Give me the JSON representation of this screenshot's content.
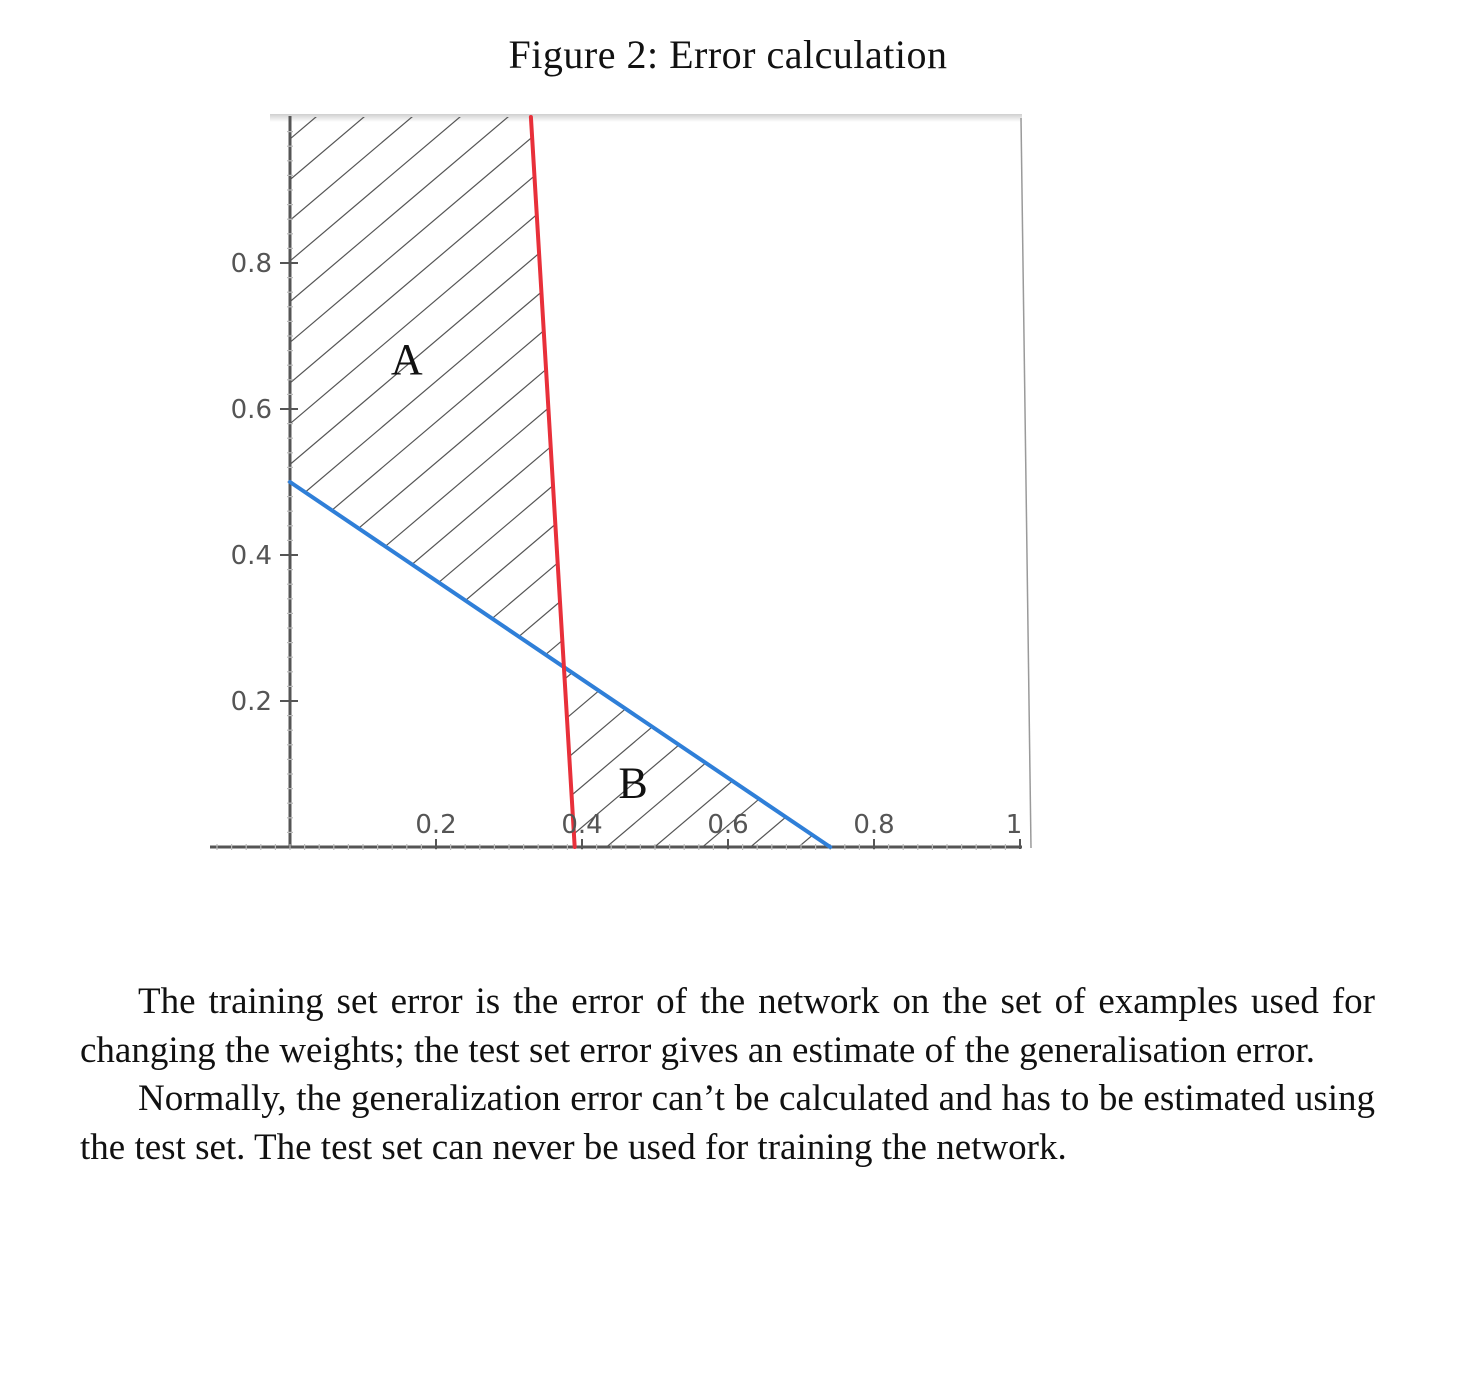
{
  "figure": {
    "caption": "Figure 2: Error calculation",
    "colors": {
      "red_line": "#e8303a",
      "blue_line": "#2f7fd8",
      "axis": "#555555",
      "hatch": "#555555"
    }
  },
  "chart_data": {
    "type": "line",
    "xlim": [
      -0.1,
      1.0
    ],
    "ylim": [
      0,
      1.0
    ],
    "x_ticks": [
      {
        "value": 0.2,
        "label": "0.2"
      },
      {
        "value": 0.4,
        "label": "0.4"
      },
      {
        "value": 0.6,
        "label": "0.6"
      },
      {
        "value": 0.8,
        "label": "0.8"
      },
      {
        "value": 1.0,
        "label": "1"
      }
    ],
    "y_ticks": [
      {
        "value": 0.2,
        "label": "0.2"
      },
      {
        "value": 0.4,
        "label": "0.4"
      },
      {
        "value": 0.6,
        "label": "0.6"
      },
      {
        "value": 0.8,
        "label": "0.8"
      }
    ],
    "series": [
      {
        "color": "#e8303a",
        "points": [
          [
            0.33,
            1.0
          ],
          [
            0.39,
            0.0
          ]
        ]
      },
      {
        "color": "#2f7fd8",
        "points": [
          [
            0.0,
            0.5
          ],
          [
            0.74,
            0.0
          ]
        ]
      }
    ],
    "regions": [
      {
        "label": "A",
        "hatched": true,
        "label_at": [
          0.16,
          0.67
        ]
      },
      {
        "label": "B",
        "hatched": true,
        "label_at": [
          0.47,
          0.09
        ]
      }
    ],
    "grid": false
  },
  "text": {
    "paragraphs": [
      "The training set error is the error of the network on the set of examples used for changing the weights; the test set error gives an estimate of the generalisation error.",
      "Normally, the generalization error can’t be calculated and has to be es­timated using the test set. The test set can never be used for training the network."
    ]
  }
}
